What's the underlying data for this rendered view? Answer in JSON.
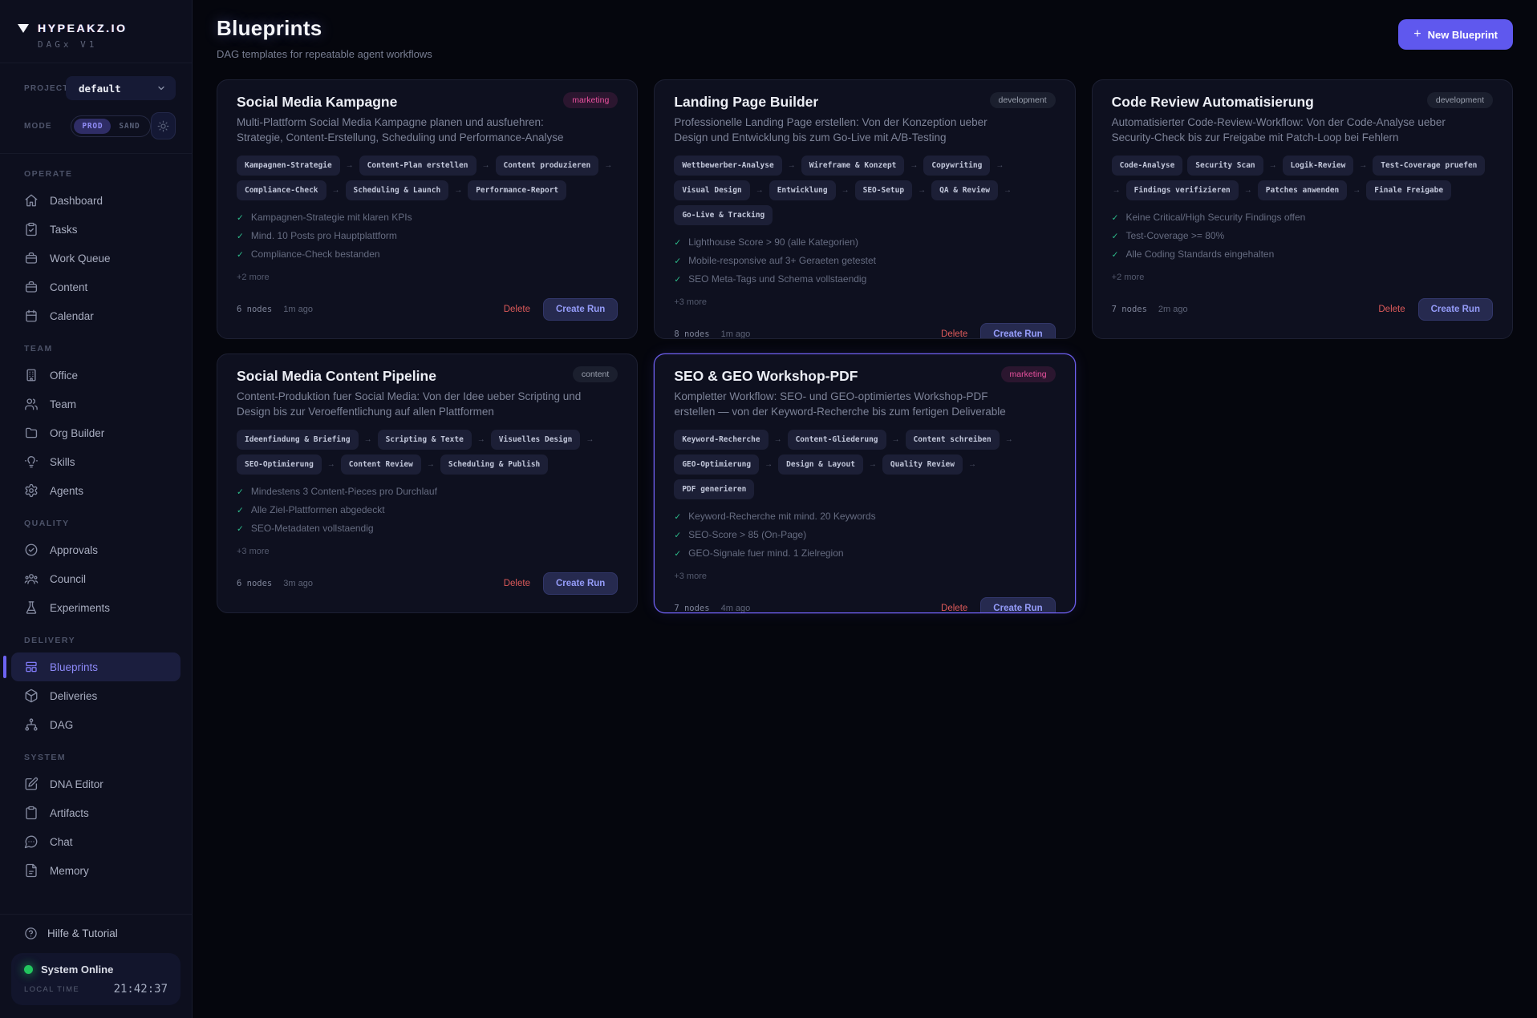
{
  "brand": {
    "name": "HYPEAKZ.IO",
    "version": "DAGx V1"
  },
  "project": {
    "label": "PROJECT",
    "value": "default"
  },
  "mode": {
    "label": "MODE",
    "options": [
      "PROD",
      "SAND"
    ],
    "active": "PROD"
  },
  "sidebar": {
    "sections": [
      {
        "title": "OPERATE",
        "items": [
          {
            "label": "Dashboard",
            "icon": "home"
          },
          {
            "label": "Tasks",
            "icon": "clipboard-check"
          },
          {
            "label": "Work Queue",
            "icon": "briefcase"
          },
          {
            "label": "Content",
            "icon": "briefcase"
          },
          {
            "label": "Calendar",
            "icon": "calendar"
          }
        ]
      },
      {
        "title": "TEAM",
        "items": [
          {
            "label": "Office",
            "icon": "building"
          },
          {
            "label": "Team",
            "icon": "users"
          },
          {
            "label": "Org Builder",
            "icon": "folder"
          },
          {
            "label": "Skills",
            "icon": "lightbulb"
          },
          {
            "label": "Agents",
            "icon": "gear"
          }
        ]
      },
      {
        "title": "QUALITY",
        "items": [
          {
            "label": "Approvals",
            "icon": "check-circle"
          },
          {
            "label": "Council",
            "icon": "users-group"
          },
          {
            "label": "Experiments",
            "icon": "flask"
          }
        ]
      },
      {
        "title": "DELIVERY",
        "items": [
          {
            "label": "Blueprints",
            "icon": "layout-grid",
            "active": true
          },
          {
            "label": "Deliveries",
            "icon": "cube"
          },
          {
            "label": "DAG",
            "icon": "network"
          }
        ]
      },
      {
        "title": "SYSTEM",
        "items": [
          {
            "label": "DNA Editor",
            "icon": "edit"
          },
          {
            "label": "Artifacts",
            "icon": "clipboard"
          },
          {
            "label": "Chat",
            "icon": "chat-bubble"
          },
          {
            "label": "Memory",
            "icon": "file-text"
          }
        ]
      }
    ]
  },
  "footer_panel": {
    "help": "Hilfe & Tutorial",
    "status": "System Online",
    "local_time_label": "LOCAL TIME",
    "time": "21:42:37"
  },
  "header": {
    "title": "Blueprints",
    "subtitle": "DAG templates for repeatable agent workflows",
    "plus": "+",
    "new_button_label": "New Blueprint"
  },
  "colors": {
    "accent": "#5f58ee",
    "marketing_badge": "#e9519e",
    "status_online": "#22c55e",
    "check_green": "#2dbd8c",
    "delete_red": "#dd5a5a"
  },
  "cards": [
    {
      "title": "Social Media Kampagne",
      "badge": {
        "label": "marketing",
        "variant": "pink"
      },
      "description": "Multi-Plattform Social Media Kampagne planen und ausfuehren: Strategie, Content-Erstellung, Scheduling und Performance-Analyse",
      "nodes": [
        {
          "label": "Kampagnen-Strategie",
          "arrow": false
        },
        {
          "label": "Content-Plan erstellen",
          "arrow": true
        },
        {
          "label": "Content produzieren",
          "arrow": true
        },
        {
          "label": "Compliance-Check",
          "arrow": true
        },
        {
          "label": "Scheduling & Launch",
          "arrow": true
        },
        {
          "label": "Performance-Report",
          "arrow": true
        }
      ],
      "checks": [
        "Kampagnen-Strategie mit klaren KPIs",
        "Mind. 10 Posts pro Hauptplattform",
        "Compliance-Check bestanden"
      ],
      "more": "+2 more",
      "node_count": "6 nodes",
      "updated": "1m ago",
      "delete_label": "Delete",
      "run_label": "Create Run",
      "highlighted": false
    },
    {
      "title": "Landing Page Builder",
      "badge": {
        "label": "development",
        "variant": "gray"
      },
      "description": "Professionelle Landing Page erstellen: Von der Konzeption ueber Design und Entwicklung bis zum Go-Live mit A/B-Testing",
      "nodes": [
        {
          "label": "Wettbewerber-Analyse",
          "arrow": false
        },
        {
          "label": "Wireframe & Konzept",
          "arrow": true
        },
        {
          "label": "Copywriting",
          "arrow": true
        },
        {
          "label": "Visual Design",
          "arrow": true
        },
        {
          "label": "Entwicklung",
          "arrow": true
        },
        {
          "label": "SEO-Setup",
          "arrow": true
        },
        {
          "label": "QA & Review",
          "arrow": true
        },
        {
          "label": "Go-Live & Tracking",
          "arrow": true
        }
      ],
      "checks": [
        "Lighthouse Score > 90 (alle Kategorien)",
        "Mobile-responsive auf 3+ Geraeten getestet",
        "SEO Meta-Tags und Schema vollstaendig"
      ],
      "more": "+3 more",
      "node_count": "8 nodes",
      "updated": "1m ago",
      "delete_label": "Delete",
      "run_label": "Create Run",
      "highlighted": false
    },
    {
      "title": "Code Review Automatisierung",
      "badge": {
        "label": "development",
        "variant": "gray"
      },
      "description": "Automatisierter Code-Review-Workflow: Von der Code-Analyse ueber Security-Check bis zur Freigabe mit Patch-Loop bei Fehlern",
      "nodes": [
        {
          "label": "Code-Analyse",
          "arrow": false
        },
        {
          "label": "Security Scan",
          "arrow": false
        },
        {
          "label": "Logik-Review",
          "arrow": true
        },
        {
          "label": "Test-Coverage pruefen",
          "arrow": true
        },
        {
          "label": "Findings verifizieren",
          "arrow": true
        },
        {
          "label": "Patches anwenden",
          "arrow": true
        },
        {
          "label": "Finale Freigabe",
          "arrow": true
        }
      ],
      "checks": [
        "Keine Critical/High Security Findings offen",
        "Test-Coverage >= 80%",
        "Alle Coding Standards eingehalten"
      ],
      "more": "+2 more",
      "node_count": "7 nodes",
      "updated": "2m ago",
      "delete_label": "Delete",
      "run_label": "Create Run",
      "highlighted": false
    },
    {
      "title": "Social Media Content Pipeline",
      "badge": {
        "label": "content",
        "variant": "gray"
      },
      "description": "Content-Produktion fuer Social Media: Von der Idee ueber Scripting und Design bis zur Veroeffentlichung auf allen Plattformen",
      "nodes": [
        {
          "label": "Ideenfindung & Briefing",
          "arrow": false
        },
        {
          "label": "Scripting & Texte",
          "arrow": true
        },
        {
          "label": "Visuelles Design",
          "arrow": true
        },
        {
          "label": "SEO-Optimierung",
          "arrow": true
        },
        {
          "label": "Content Review",
          "arrow": true
        },
        {
          "label": "Scheduling & Publish",
          "arrow": true
        }
      ],
      "checks": [
        "Mindestens 3 Content-Pieces pro Durchlauf",
        "Alle Ziel-Plattformen abgedeckt",
        "SEO-Metadaten vollstaendig"
      ],
      "more": "+3 more",
      "node_count": "6 nodes",
      "updated": "3m ago",
      "delete_label": "Delete",
      "run_label": "Create Run",
      "highlighted": false
    },
    {
      "title": "SEO & GEO Workshop-PDF",
      "badge": {
        "label": "marketing",
        "variant": "pink"
      },
      "description": "Kompletter Workflow: SEO- und GEO-optimiertes Workshop-PDF erstellen — von der Keyword-Recherche bis zum fertigen Deliverable",
      "nodes": [
        {
          "label": "Keyword-Recherche",
          "arrow": false
        },
        {
          "label": "Content-Gliederung",
          "arrow": true
        },
        {
          "label": "Content schreiben",
          "arrow": true
        },
        {
          "label": "GEO-Optimierung",
          "arrow": true
        },
        {
          "label": "Design & Layout",
          "arrow": true
        },
        {
          "label": "Quality Review",
          "arrow": true
        },
        {
          "label": "PDF generieren",
          "arrow": true
        }
      ],
      "checks": [
        "Keyword-Recherche mit mind. 20 Keywords",
        "SEO-Score > 85 (On-Page)",
        "GEO-Signale fuer mind. 1 Zielregion"
      ],
      "more": "+3 more",
      "node_count": "7 nodes",
      "updated": "4m ago",
      "delete_label": "Delete",
      "run_label": "Create Run",
      "highlighted": true
    }
  ]
}
